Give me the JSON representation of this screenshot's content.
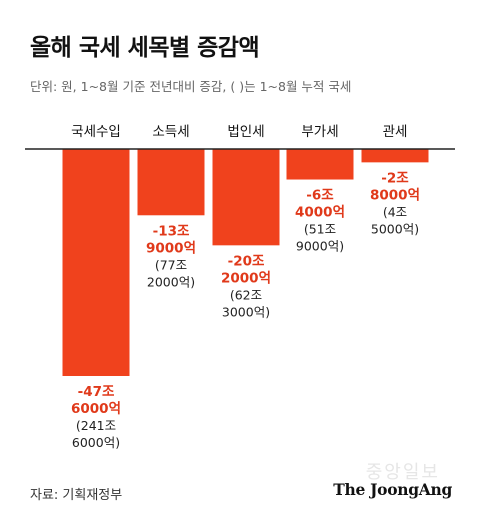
{
  "header": {
    "title": "올해 국세 세목별 증감액",
    "subtitle": "단위: 원, 1~8월 기준 전년대비 증감, (  )는 1~8월 누적 국세"
  },
  "footer": {
    "source": "자료: 기획재정부",
    "brand": "The JoongAng",
    "watermark": "중앙일보"
  },
  "colors": {
    "bar": "#f0421d",
    "change_text": "#e0391a",
    "total_text": "#222222",
    "axis": "#222222"
  },
  "chart_data": {
    "type": "bar",
    "title": "올해 국세 세목별 증감액",
    "categories": [
      "국세수입",
      "소득세",
      "법인세",
      "부가세",
      "관세"
    ],
    "series": [
      {
        "values": [
          -47.6,
          -13.9,
          -20.2,
          -6.4,
          -2.8
        ]
      }
    ],
    "unit": "조 원",
    "ylim": [
      -47.6,
      0
    ],
    "grid": false,
    "legend": "none",
    "data_labels": [
      {
        "change": [
          "-47조",
          "6000억"
        ],
        "total": [
          "(241조",
          "6000억)"
        ]
      },
      {
        "change": [
          "-13조",
          "9000억"
        ],
        "total": [
          "(77조",
          "2000억)"
        ]
      },
      {
        "change": [
          "-20조",
          "2000억"
        ],
        "total": [
          "(62조",
          "3000억)"
        ]
      },
      {
        "change": [
          "-6조",
          "4000억"
        ],
        "total": [
          "(51조",
          "9000억)"
        ]
      },
      {
        "change": [
          "-2조",
          "8000억"
        ],
        "total": [
          "(4조",
          "5000억)"
        ]
      }
    ]
  }
}
